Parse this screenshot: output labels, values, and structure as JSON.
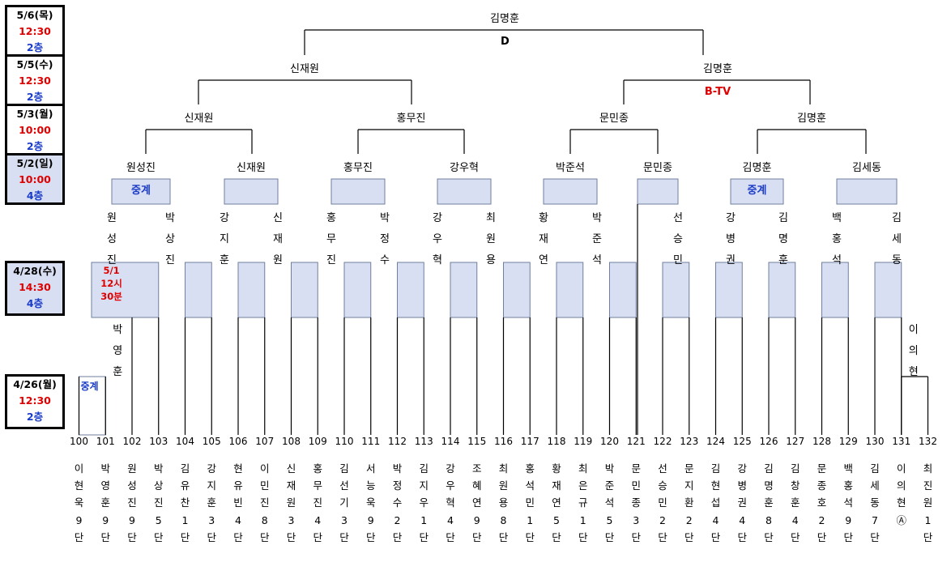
{
  "schedule": [
    {
      "date": "5/6(목)",
      "time": "12:30",
      "floor": "2층",
      "highlight": false
    },
    {
      "date": "5/5(수)",
      "time": "12:30",
      "floor": "2층",
      "highlight": false
    },
    {
      "date": "5/3(월)",
      "time": "10:00",
      "floor": "2층",
      "highlight": false
    },
    {
      "date": "5/2(일)",
      "time": "10:00",
      "floor": "4층",
      "highlight": true
    },
    {
      "date": "4/28(수)",
      "time": "14:30",
      "floor": "4층",
      "highlight": true
    },
    {
      "date": "4/26(월)",
      "time": "12:30",
      "floor": "2층",
      "highlight": false
    }
  ],
  "champion": "김명훈",
  "final_marker": "D",
  "semifinal_winners": [
    "신재원",
    "김명훈"
  ],
  "semifinal_note": "B-TV",
  "quarterfinal_winners": [
    "신재원",
    "홍무진",
    "문민종",
    "김명훈"
  ],
  "round16_winners": [
    "원성진",
    "신재원",
    "홍무진",
    "강우혁",
    "박준석",
    "문민종",
    "김명훈",
    "김세동"
  ],
  "round32_winners": [
    "원성진",
    "박상진",
    "강지훈",
    "신재원",
    "홍무진",
    "박정수",
    "강우혁",
    "최원용",
    "황재연",
    "박준석",
    "",
    "선승민",
    "강병권",
    "김명훈",
    "백홍석",
    "김세동"
  ],
  "broadcast_label": "중계",
  "round32_note": "5/1\n12시\n30분",
  "prelim_winners": [
    "박영훈",
    "이의현"
  ],
  "players": [
    {
      "num": "100",
      "name": "이현욱",
      "rank": "9단"
    },
    {
      "num": "101",
      "name": "박영훈",
      "rank": "9단"
    },
    {
      "num": "102",
      "name": "원성진",
      "rank": "9단"
    },
    {
      "num": "103",
      "name": "박상진",
      "rank": "5단"
    },
    {
      "num": "104",
      "name": "김유찬",
      "rank": "1단"
    },
    {
      "num": "105",
      "name": "강지훈",
      "rank": "3단"
    },
    {
      "num": "106",
      "name": "현유빈",
      "rank": "4단"
    },
    {
      "num": "107",
      "name": "이민진",
      "rank": "8단"
    },
    {
      "num": "108",
      "name": "신재원",
      "rank": "3단"
    },
    {
      "num": "109",
      "name": "홍무진",
      "rank": "4단"
    },
    {
      "num": "110",
      "name": "김선기",
      "rank": "3단"
    },
    {
      "num": "111",
      "name": "서능욱",
      "rank": "9단"
    },
    {
      "num": "112",
      "name": "박정수",
      "rank": "2단"
    },
    {
      "num": "113",
      "name": "김지우",
      "rank": "1단"
    },
    {
      "num": "114",
      "name": "강우혁",
      "rank": "4단"
    },
    {
      "num": "115",
      "name": "조혜연",
      "rank": "9단"
    },
    {
      "num": "116",
      "name": "최원용",
      "rank": "8단"
    },
    {
      "num": "117",
      "name": "홍석민",
      "rank": "1단"
    },
    {
      "num": "118",
      "name": "황재연",
      "rank": "5단"
    },
    {
      "num": "119",
      "name": "최은규",
      "rank": "1단"
    },
    {
      "num": "120",
      "name": "박준석",
      "rank": "5단"
    },
    {
      "num": "121",
      "name": "문민종",
      "rank": "3단"
    },
    {
      "num": "122",
      "name": "선승민",
      "rank": "2단"
    },
    {
      "num": "123",
      "name": "문지환",
      "rank": "2단"
    },
    {
      "num": "124",
      "name": "김현섭",
      "rank": "4단"
    },
    {
      "num": "125",
      "name": "강병권",
      "rank": "4단"
    },
    {
      "num": "126",
      "name": "김명훈",
      "rank": "8단"
    },
    {
      "num": "127",
      "name": "김창훈",
      "rank": "4단"
    },
    {
      "num": "128",
      "name": "문종호",
      "rank": "2단"
    },
    {
      "num": "129",
      "name": "백홍석",
      "rank": "9단"
    },
    {
      "num": "130",
      "name": "김세동",
      "rank": "7단"
    },
    {
      "num": "131",
      "name": "이의현",
      "rank": "Ⓐ"
    },
    {
      "num": "132",
      "name": "최진원",
      "rank": "1단"
    }
  ],
  "colors": {
    "accent_red": "#e00000",
    "accent_blue": "#1a3cc8",
    "box_fill": "#d9dff2",
    "box_stroke": "#6f7f9f",
    "line": "#000000"
  }
}
